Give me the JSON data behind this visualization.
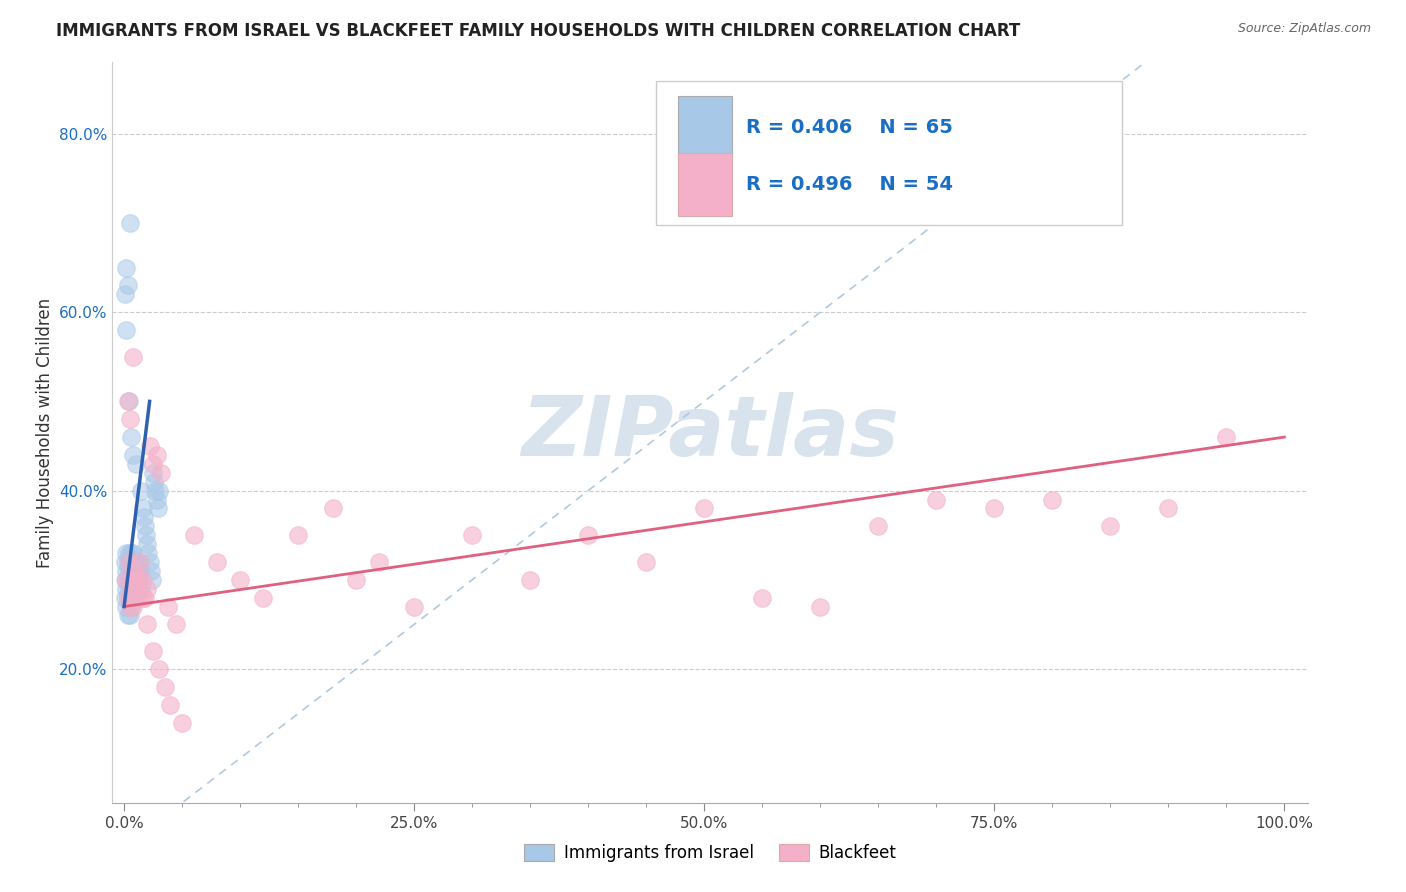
{
  "title": "IMMIGRANTS FROM ISRAEL VS BLACKFEET FAMILY HOUSEHOLDS WITH CHILDREN CORRELATION CHART",
  "source": "Source: ZipAtlas.com",
  "ylabel": "Family Households with Children",
  "blue_R": "R = 0.406",
  "blue_N": "N = 65",
  "pink_R": "R = 0.496",
  "pink_N": "N = 54",
  "blue_color": "#a8c8e8",
  "pink_color": "#f4b0c8",
  "blue_line_color": "#3060b0",
  "pink_line_color": "#e06080",
  "diag_color": "#b0c8e0",
  "xtick_labels": [
    "0.0%",
    "",
    "",
    "",
    "",
    "25.0%",
    "",
    "",
    "",
    "",
    "50.0%",
    "",
    "",
    "",
    "",
    "75.0%",
    "",
    "",
    "",
    "",
    "100.0%"
  ],
  "xtick_vals": [
    0.0,
    0.05,
    0.1,
    0.15,
    0.2,
    0.25,
    0.3,
    0.35,
    0.4,
    0.45,
    0.5,
    0.55,
    0.6,
    0.65,
    0.7,
    0.75,
    0.8,
    0.85,
    0.9,
    0.95,
    1.0
  ],
  "ytick_vals": [
    0.2,
    0.4,
    0.6,
    0.8
  ],
  "ytick_labels": [
    "20.0%",
    "40.0%",
    "60.0%",
    "80.0%"
  ],
  "xlim": [
    -0.01,
    1.02
  ],
  "ylim": [
    0.05,
    0.88
  ],
  "blue_scatter_x": [
    0.001,
    0.001,
    0.001,
    0.002,
    0.002,
    0.002,
    0.002,
    0.003,
    0.003,
    0.003,
    0.003,
    0.004,
    0.004,
    0.004,
    0.005,
    0.005,
    0.005,
    0.006,
    0.006,
    0.006,
    0.006,
    0.007,
    0.007,
    0.007,
    0.008,
    0.008,
    0.008,
    0.009,
    0.009,
    0.009,
    0.01,
    0.01,
    0.011,
    0.011,
    0.012,
    0.012,
    0.013,
    0.013,
    0.014,
    0.015,
    0.015,
    0.016,
    0.017,
    0.018,
    0.019,
    0.02,
    0.021,
    0.022,
    0.023,
    0.024,
    0.025,
    0.026,
    0.027,
    0.028,
    0.029,
    0.03,
    0.001,
    0.002,
    0.004,
    0.006,
    0.002,
    0.003,
    0.005,
    0.008,
    0.01
  ],
  "blue_scatter_y": [
    0.3,
    0.28,
    0.32,
    0.29,
    0.31,
    0.27,
    0.33,
    0.3,
    0.28,
    0.32,
    0.26,
    0.29,
    0.31,
    0.33,
    0.3,
    0.28,
    0.26,
    0.31,
    0.29,
    0.27,
    0.33,
    0.3,
    0.32,
    0.28,
    0.31,
    0.29,
    0.33,
    0.3,
    0.28,
    0.32,
    0.31,
    0.29,
    0.3,
    0.32,
    0.31,
    0.29,
    0.3,
    0.32,
    0.31,
    0.29,
    0.4,
    0.38,
    0.37,
    0.36,
    0.35,
    0.34,
    0.33,
    0.32,
    0.31,
    0.3,
    0.42,
    0.41,
    0.4,
    0.39,
    0.38,
    0.4,
    0.62,
    0.58,
    0.5,
    0.46,
    0.65,
    0.63,
    0.7,
    0.44,
    0.43
  ],
  "pink_scatter_x": [
    0.002,
    0.003,
    0.004,
    0.005,
    0.006,
    0.007,
    0.008,
    0.009,
    0.01,
    0.012,
    0.014,
    0.016,
    0.018,
    0.02,
    0.022,
    0.025,
    0.028,
    0.032,
    0.038,
    0.045,
    0.06,
    0.08,
    0.1,
    0.12,
    0.15,
    0.18,
    0.2,
    0.22,
    0.25,
    0.3,
    0.35,
    0.4,
    0.45,
    0.5,
    0.55,
    0.6,
    0.65,
    0.7,
    0.75,
    0.8,
    0.85,
    0.9,
    0.95,
    0.003,
    0.005,
    0.008,
    0.012,
    0.016,
    0.02,
    0.025,
    0.03,
    0.035,
    0.04,
    0.05
  ],
  "pink_scatter_y": [
    0.3,
    0.28,
    0.32,
    0.27,
    0.3,
    0.29,
    0.27,
    0.31,
    0.3,
    0.28,
    0.32,
    0.3,
    0.28,
    0.29,
    0.45,
    0.43,
    0.44,
    0.42,
    0.27,
    0.25,
    0.35,
    0.32,
    0.3,
    0.28,
    0.35,
    0.38,
    0.3,
    0.32,
    0.27,
    0.35,
    0.3,
    0.35,
    0.32,
    0.38,
    0.28,
    0.27,
    0.36,
    0.39,
    0.38,
    0.39,
    0.36,
    0.38,
    0.46,
    0.5,
    0.48,
    0.55,
    0.3,
    0.28,
    0.25,
    0.22,
    0.2,
    0.18,
    0.16,
    0.14
  ],
  "blue_line_x": [
    0.0,
    0.022
  ],
  "blue_line_y": [
    0.27,
    0.5
  ],
  "pink_line_x": [
    0.0,
    1.0
  ],
  "pink_line_y": [
    0.27,
    0.46
  ],
  "watermark_text": "ZIPatlas",
  "watermark_color": "#c8d8e8",
  "watermark_fontsize": 60,
  "legend_labels_bottom": [
    "Immigrants from Israel",
    "Blackfeet"
  ]
}
